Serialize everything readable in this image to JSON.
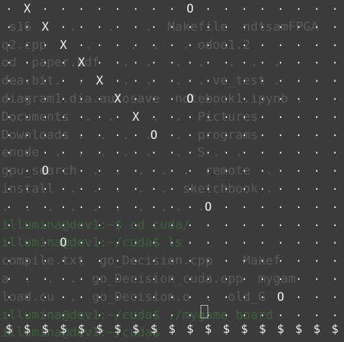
{
  "board": {
    "cols": 19,
    "rows": 18,
    "empty_char": ".",
    "wall_char": "$",
    "x_char": "X",
    "o_char": "O",
    "pieces": [
      {
        "row": 0,
        "col": 1,
        "kind": "X"
      },
      {
        "row": 0,
        "col": 10,
        "kind": "O"
      },
      {
        "row": 1,
        "col": 2,
        "kind": "X"
      },
      {
        "row": 2,
        "col": 3,
        "kind": "X"
      },
      {
        "row": 3,
        "col": 4,
        "kind": "X"
      },
      {
        "row": 4,
        "col": 5,
        "kind": "X"
      },
      {
        "row": 5,
        "col": 6,
        "kind": "X"
      },
      {
        "row": 5,
        "col": 10,
        "kind": "O"
      },
      {
        "row": 6,
        "col": 7,
        "kind": "X"
      },
      {
        "row": 7,
        "col": 8,
        "kind": "O"
      },
      {
        "row": 9,
        "col": 2,
        "kind": "O"
      },
      {
        "row": 11,
        "col": 11,
        "kind": "O"
      },
      {
        "row": 13,
        "col": 3,
        "kind": "O"
      },
      {
        "row": 16,
        "col": 15,
        "kind": "O"
      }
    ],
    "colors": {
      "background": "#3b3b3b",
      "foreground": "#e8e8e8"
    }
  },
  "terminal_background": {
    "lines": [
      {
        "text": "",
        "style": "text"
      },
      {
        "text": " s16     .    .    .  Makefile  ndtsamFPGA",
        "style": "text"
      },
      {
        "text": "q2.cpp     .     .  .   . odoo1.2",
        "style": "text"
      },
      {
        "text": "od  paper.pdf   .  .   .  .   .  .  .",
        "style": "text"
      },
      {
        "text": "dea.bit.  .  .  .  .   .  . ve_test .",
        "style": "text"
      },
      {
        "text": "diagram1.dia.autosave  notebook1.ipynb .",
        "style": "text"
      },
      {
        "text": "Documents  .  .  .  .  .  Pictures",
        "style": "text"
      },
      {
        "text": "Downloads .  .  .  .   .  programs",
        "style": "text"
      },
      {
        "text": "enode  .  .  .  .  .   .  S .  .",
        "style": "text"
      },
      {
        "text": "gpu_search  .  .  .  .  .  remote  .",
        "style": "text"
      },
      {
        "text": "install  .  .  .  .  .  sketchbook .",
        "style": "text"
      },
      {
        "text": ".  .  .  .  .  .  .  . .  .",
        "style": "text"
      },
      {
        "text": "illumina@dev1:~$ cd cuda/",
        "style": "green"
      },
      {
        "text": "illumina@dev1:~/cuda$ ls",
        "style": "green"
      },
      {
        "text": "compile.txt  go_Decision.cpp    Makef",
        "style": "text"
      },
      {
        "text": "a  .  .  .  go_Decision_cuda.cpp  mygam",
        "style": "text"
      },
      {
        "text": "load.cu  .  go_Decision.o  .  old_G",
        "style": "text"
      },
      {
        "text": "illumina@dev1:~/cuda$ ./mygame_board",
        "style": "green"
      },
      {
        "text": "illumina@dev1:~/cuda$ ",
        "style": "green"
      }
    ]
  }
}
